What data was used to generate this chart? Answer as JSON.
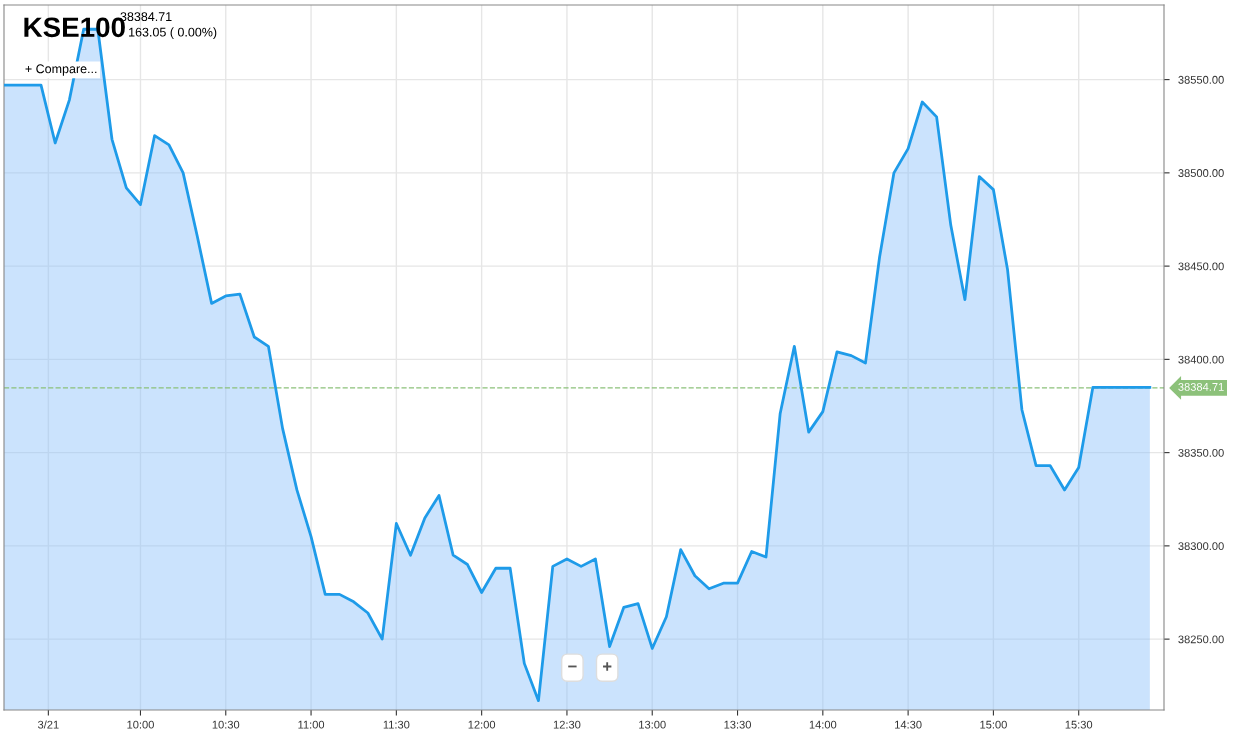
{
  "chart_data": {
    "type": "area",
    "title": "KSE100",
    "annotations": [
      "38384.71",
      "163.05 ( 0.00%)",
      "+ Compare...",
      "−",
      "+"
    ],
    "x": [
      9.2,
      9.417,
      9.5,
      9.583,
      9.667,
      9.75,
      9.833,
      9.917,
      10,
      10.083,
      10.167,
      10.25,
      10.333,
      10.417,
      10.5,
      10.583,
      10.667,
      10.75,
      10.833,
      10.917,
      11,
      11.083,
      11.167,
      11.25,
      11.333,
      11.417,
      11.5,
      11.583,
      11.667,
      11.75,
      11.833,
      11.917,
      12,
      12.083,
      12.167,
      12.25,
      12.333,
      12.417,
      12.5,
      12.583,
      12.667,
      12.75,
      12.833,
      12.917,
      13,
      13.083,
      13.167,
      13.25,
      13.333,
      13.417,
      13.5,
      13.583,
      13.667,
      13.75,
      13.833,
      13.917,
      14,
      14.083,
      14.167,
      14.25,
      14.333,
      14.417,
      14.5,
      14.583,
      14.667,
      14.75,
      14.833,
      14.917,
      15,
      15.083,
      15.167,
      15.25,
      15.333,
      15.417,
      15.5,
      15.583,
      15.917
    ],
    "series": [
      {
        "color": "#1e9be9",
        "values": [
          38547,
          38547,
          38516,
          38539,
          38577,
          38577,
          38518,
          38492,
          38483,
          38520,
          38515,
          38500,
          38466,
          38430,
          38434,
          38435,
          38412,
          38407,
          38363,
          38330,
          38305,
          38274,
          38274,
          38270,
          38264,
          38250,
          38312,
          38295,
          38315,
          38327,
          38295,
          38290,
          38275,
          38288,
          38288,
          38237,
          38217,
          38289,
          38293,
          38289,
          38293,
          38246,
          38267,
          38269,
          38245,
          38262,
          38298,
          38284,
          38277,
          38280,
          38280,
          38297,
          38294,
          38371,
          38407,
          38361,
          38372,
          38404,
          38402,
          38398,
          38455,
          38500,
          38513,
          38538,
          38530,
          38472,
          38432,
          38498,
          38491,
          38448,
          38373,
          38343,
          38343,
          38330,
          38342,
          38385,
          38385
        ]
      }
    ],
    "xlim": [
      9.2,
      16.0
    ],
    "xticks": [
      {
        "value": 9.46,
        "label": "3/21"
      },
      {
        "value": 10,
        "label": "10:00"
      },
      {
        "value": 10.5,
        "label": "10:30"
      },
      {
        "value": 11,
        "label": "11:00"
      },
      {
        "value": 11.5,
        "label": "11:30"
      },
      {
        "value": 12,
        "label": "12:00"
      },
      {
        "value": 12.5,
        "label": "12:30"
      },
      {
        "value": 13,
        "label": "13:00"
      },
      {
        "value": 13.5,
        "label": "13:30"
      },
      {
        "value": 14,
        "label": "14:00"
      },
      {
        "value": 14.5,
        "label": "14:30"
      },
      {
        "value": 15,
        "label": "15:00"
      },
      {
        "value": 15.5,
        "label": "15:30"
      }
    ],
    "ylim": [
      38212,
      38590
    ],
    "yticks": [
      {
        "value": 38250,
        "label": "38250.00"
      },
      {
        "value": 38300,
        "label": "38300.00"
      },
      {
        "value": 38350,
        "label": "38350.00"
      },
      {
        "value": 38400,
        "label": "38400.00"
      },
      {
        "value": 38450,
        "label": "38450.00"
      },
      {
        "value": 38500,
        "label": "38500.00"
      },
      {
        "value": 38550,
        "label": "38550.00"
      }
    ],
    "ref_lines": [
      {
        "axis": "y",
        "value": 38384.71,
        "label": "38384.71",
        "color": "#8cc17a",
        "line_style": "dashed"
      }
    ],
    "grid": true,
    "legend": false,
    "marker": "none",
    "line_style": "solid"
  }
}
